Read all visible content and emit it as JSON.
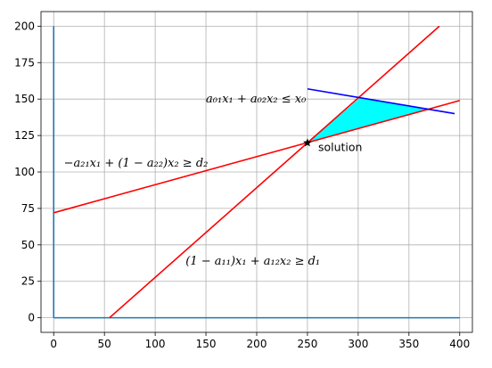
{
  "chart_data": {
    "type": "line",
    "title": "",
    "xlabel": "",
    "ylabel": "",
    "xlim": [
      -12.5,
      412.5
    ],
    "ylim": [
      -10,
      210
    ],
    "xticks": [
      0,
      50,
      100,
      150,
      200,
      250,
      300,
      350,
      400
    ],
    "yticks": [
      0,
      25,
      50,
      75,
      100,
      125,
      150,
      175,
      200
    ],
    "grid": true,
    "colors": {
      "axes_lines": "#1f77b4",
      "constraint_red": "#ff0000",
      "constraint_blue": "#0000ff",
      "region_fill": "#00ffff",
      "grid": "#b0b0b0"
    },
    "series": [
      {
        "role": "axis-y",
        "color": "#1f77b4",
        "x": [
          0,
          0
        ],
        "y": [
          0,
          200
        ]
      },
      {
        "role": "axis-x",
        "color": "#1f77b4",
        "x": [
          0,
          400
        ],
        "y": [
          0,
          0
        ]
      },
      {
        "role": "constraint-1",
        "color": "#ff0000",
        "x": [
          55,
          380
        ],
        "y": [
          0,
          200
        ]
      },
      {
        "role": "constraint-2",
        "color": "#ff0000",
        "x": [
          0,
          400
        ],
        "y": [
          72,
          149
        ]
      },
      {
        "role": "constraint-0",
        "color": "#0000ff",
        "x": [
          250,
          395
        ],
        "y": [
          157,
          140
        ]
      }
    ],
    "feasible_region": {
      "color": "#00ffff",
      "x": [
        250,
        302,
        372,
        250
      ],
      "y": [
        120,
        151,
        143,
        120
      ]
    },
    "solution_point": {
      "x": 250,
      "y": 120,
      "label": "solution"
    },
    "annotations": [
      {
        "text": "a₀₁x₁ + a₀₂x₂ ≤ x₀",
        "x": 150,
        "y": 150
      },
      {
        "text": "−a₂₁x₁ + (1 − a₂₂)x₂ ≥ d₂",
        "x": 10,
        "y": 106
      },
      {
        "text": "(1 − a₁₁)x₁ + a₁₂x₂ ≥ d₁",
        "x": 130,
        "y": 39
      }
    ]
  }
}
